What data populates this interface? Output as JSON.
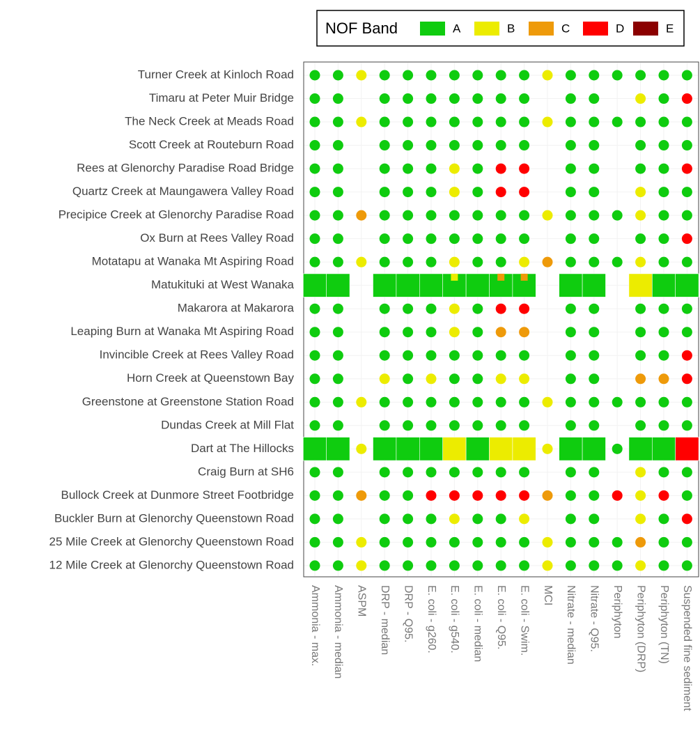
{
  "chart_data": {
    "type": "categorical-grid",
    "legend": {
      "title": "NOF Band",
      "position": "top-right",
      "bands": [
        "A",
        "B",
        "C",
        "D",
        "E"
      ],
      "colors": {
        "A": "#0fcc0f",
        "B": "#ecec00",
        "C": "#ee9a0a",
        "D": "#ff0000",
        "E": "#8b0000"
      }
    },
    "indicators": [
      "Ammonia - max.",
      "Ammonia - median",
      "ASPM",
      "DRP - median",
      "DRP - Q95.",
      "E. coli - g260.",
      "E. coli - g540.",
      "E. coli - median",
      "E. coli - Q95.",
      "E. coli - Swim.",
      "MCI",
      "Nitrate - median",
      "Nitrate - Q95.",
      "Periphyton",
      "Periphyton (DRP)",
      "Periphyton (TN)",
      "Suspended fine sediment"
    ],
    "rows": [
      {
        "site": "Turner Creek at Kinloch Road",
        "bands": [
          "A",
          "A",
          "B",
          "A",
          "A",
          "A",
          "A",
          "A",
          "A",
          "A",
          "B",
          "A",
          "A",
          "A",
          "A",
          "A",
          "A"
        ]
      },
      {
        "site": "Timaru at Peter Muir Bridge",
        "bands": [
          "A",
          "A",
          null,
          "A",
          "A",
          "A",
          "A",
          "A",
          "A",
          "A",
          null,
          "A",
          "A",
          null,
          "B",
          "A",
          "D"
        ]
      },
      {
        "site": "The Neck Creek at Meads Road",
        "bands": [
          "A",
          "A",
          "B",
          "A",
          "A",
          "A",
          "A",
          "A",
          "A",
          "A",
          "B",
          "A",
          "A",
          "A",
          "A",
          "A",
          "A"
        ]
      },
      {
        "site": "Scott Creek at Routeburn Road",
        "bands": [
          "A",
          "A",
          null,
          "A",
          "A",
          "A",
          "A",
          "A",
          "A",
          "A",
          null,
          "A",
          "A",
          null,
          "A",
          "A",
          "A"
        ]
      },
      {
        "site": "Rees at Glenorchy Paradise Road Bridge",
        "bands": [
          "A",
          "A",
          null,
          "A",
          "A",
          "A",
          "B",
          "A",
          "D",
          "D",
          null,
          "A",
          "A",
          null,
          "A",
          "A",
          "D"
        ]
      },
      {
        "site": "Quartz Creek at Maungawera Valley Road",
        "bands": [
          "A",
          "A",
          null,
          "A",
          "A",
          "A",
          "B",
          "A",
          "D",
          "D",
          null,
          "A",
          "A",
          null,
          "B",
          "A",
          "A"
        ]
      },
      {
        "site": "Precipice Creek at Glenorchy Paradise Road",
        "bands": [
          "A",
          "A",
          "C",
          "A",
          "A",
          "A",
          "A",
          "A",
          "A",
          "A",
          "B",
          "A",
          "A",
          "A",
          "B",
          "A",
          "A"
        ]
      },
      {
        "site": "Ox Burn at Rees Valley Road",
        "bands": [
          "A",
          "A",
          null,
          "A",
          "A",
          "A",
          "A",
          "A",
          "A",
          "A",
          null,
          "A",
          "A",
          null,
          "A",
          "A",
          "D"
        ]
      },
      {
        "site": "Motatapu at Wanaka Mt Aspiring Road",
        "bands": [
          "A",
          "A",
          "B",
          "A",
          "A",
          "A",
          "B",
          "A",
          "A",
          "B",
          "C",
          "A",
          "A",
          "A",
          "B",
          "A",
          "A"
        ]
      },
      {
        "site": "Matukituki at West Wanaka",
        "bands": [
          "A",
          "A",
          null,
          "A",
          "A",
          "A",
          "A",
          "A",
          "A",
          "A",
          null,
          "A",
          "A",
          null,
          "B",
          "A",
          "A"
        ],
        "tiles": [
          true,
          true,
          false,
          true,
          true,
          true,
          true,
          true,
          true,
          true,
          false,
          true,
          true,
          false,
          true,
          true,
          true
        ],
        "inner": [
          null,
          null,
          null,
          null,
          null,
          null,
          "B",
          null,
          "C",
          "C",
          null,
          null,
          null,
          null,
          null,
          null,
          null
        ]
      },
      {
        "site": "Makarora at Makarora",
        "bands": [
          "A",
          "A",
          null,
          "A",
          "A",
          "A",
          "B",
          "A",
          "D",
          "D",
          null,
          "A",
          "A",
          null,
          "A",
          "A",
          "A"
        ]
      },
      {
        "site": "Leaping Burn at Wanaka Mt Aspiring Road",
        "bands": [
          "A",
          "A",
          null,
          "A",
          "A",
          "A",
          "B",
          "A",
          "C",
          "C",
          null,
          "A",
          "A",
          null,
          "A",
          "A",
          "A"
        ]
      },
      {
        "site": "Invincible Creek at Rees Valley Road",
        "bands": [
          "A",
          "A",
          null,
          "A",
          "A",
          "A",
          "A",
          "A",
          "A",
          "A",
          null,
          "A",
          "A",
          null,
          "A",
          "A",
          "D"
        ]
      },
      {
        "site": "Horn Creek at Queenstown Bay",
        "bands": [
          "A",
          "A",
          null,
          "B",
          "A",
          "B",
          "A",
          "A",
          "B",
          "B",
          null,
          "A",
          "A",
          null,
          "C",
          "C",
          "D"
        ]
      },
      {
        "site": "Greenstone at Greenstone Station Road",
        "bands": [
          "A",
          "A",
          "B",
          "A",
          "A",
          "A",
          "A",
          "A",
          "A",
          "A",
          "B",
          "A",
          "A",
          "A",
          "A",
          "A",
          "A"
        ]
      },
      {
        "site": "Dundas Creek at Mill Flat",
        "bands": [
          "A",
          "A",
          null,
          "A",
          "A",
          "A",
          "A",
          "A",
          "A",
          "A",
          null,
          "A",
          "A",
          null,
          "A",
          "A",
          "A"
        ]
      },
      {
        "site": "Dart at The Hillocks",
        "bands": [
          "A",
          "A",
          "B",
          "A",
          "A",
          "A",
          "B",
          "A",
          "B",
          "B",
          "B",
          "A",
          "A",
          "A",
          "A",
          "A",
          "D"
        ],
        "tiles": [
          true,
          true,
          false,
          true,
          true,
          true,
          true,
          true,
          true,
          true,
          false,
          true,
          true,
          false,
          true,
          true,
          true
        ]
      },
      {
        "site": "Craig Burn at SH6",
        "bands": [
          "A",
          "A",
          null,
          "A",
          "A",
          "A",
          "A",
          "A",
          "A",
          "A",
          null,
          "A",
          "A",
          null,
          "B",
          "A",
          "A"
        ]
      },
      {
        "site": "Bullock Creek at Dunmore Street Footbridge",
        "bands": [
          "A",
          "A",
          "C",
          "A",
          "A",
          "D",
          "D",
          "D",
          "D",
          "D",
          "C",
          "A",
          "A",
          "D",
          "B",
          "D",
          "A"
        ]
      },
      {
        "site": "Buckler Burn at Glenorchy Queenstown Road",
        "bands": [
          "A",
          "A",
          null,
          "A",
          "A",
          "A",
          "B",
          "A",
          "A",
          "B",
          null,
          "A",
          "A",
          null,
          "B",
          "A",
          "D"
        ]
      },
      {
        "site": "25 Mile Creek at Glenorchy Queenstown Road",
        "bands": [
          "A",
          "A",
          "B",
          "A",
          "A",
          "A",
          "A",
          "A",
          "A",
          "A",
          "B",
          "A",
          "A",
          "A",
          "C",
          "A",
          "A"
        ]
      },
      {
        "site": "12 Mile Creek at Glenorchy Queenstown Road",
        "bands": [
          "A",
          "A",
          "B",
          "A",
          "A",
          "A",
          "A",
          "A",
          "A",
          "A",
          "B",
          "A",
          "A",
          "A",
          "B",
          "A",
          "A"
        ]
      }
    ]
  }
}
